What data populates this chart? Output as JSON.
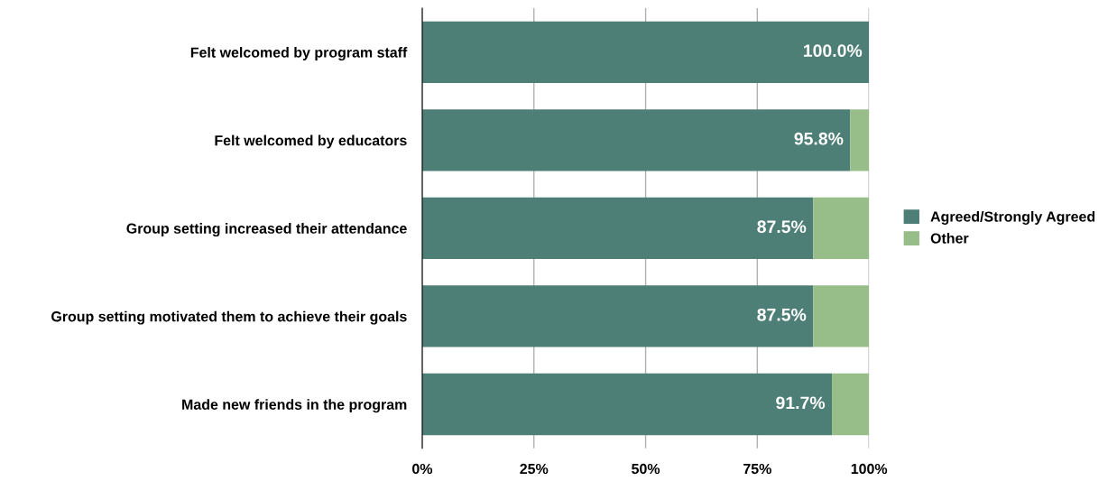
{
  "chart_data": {
    "type": "bar",
    "orientation": "horizontal",
    "stacked": true,
    "categories": [
      "Felt welcomed by program staff",
      "Felt welcomed by educators",
      "Group setting increased their attendance",
      "Group setting motivated them to achieve their goals",
      "Made new friends in the program"
    ],
    "series": [
      {
        "name": "Agreed/Strongly Agreed",
        "color": "#4e7f76",
        "values": [
          100.0,
          95.8,
          87.5,
          87.5,
          91.7
        ],
        "value_labels": [
          "100.0%",
          "95.8%",
          "87.5%",
          "87.5%",
          "91.7%"
        ]
      },
      {
        "name": "Other",
        "color": "#97bd88",
        "values": [
          0.0,
          4.2,
          12.5,
          12.5,
          8.3
        ]
      }
    ],
    "xlim": [
      0,
      100
    ],
    "xticks": [
      {
        "value": 0,
        "label": "0%"
      },
      {
        "value": 25,
        "label": "25%"
      },
      {
        "value": 50,
        "label": "50%"
      },
      {
        "value": 75,
        "label": "75%"
      },
      {
        "value": 100,
        "label": "100%"
      }
    ],
    "grid": "x",
    "legend": "right"
  }
}
